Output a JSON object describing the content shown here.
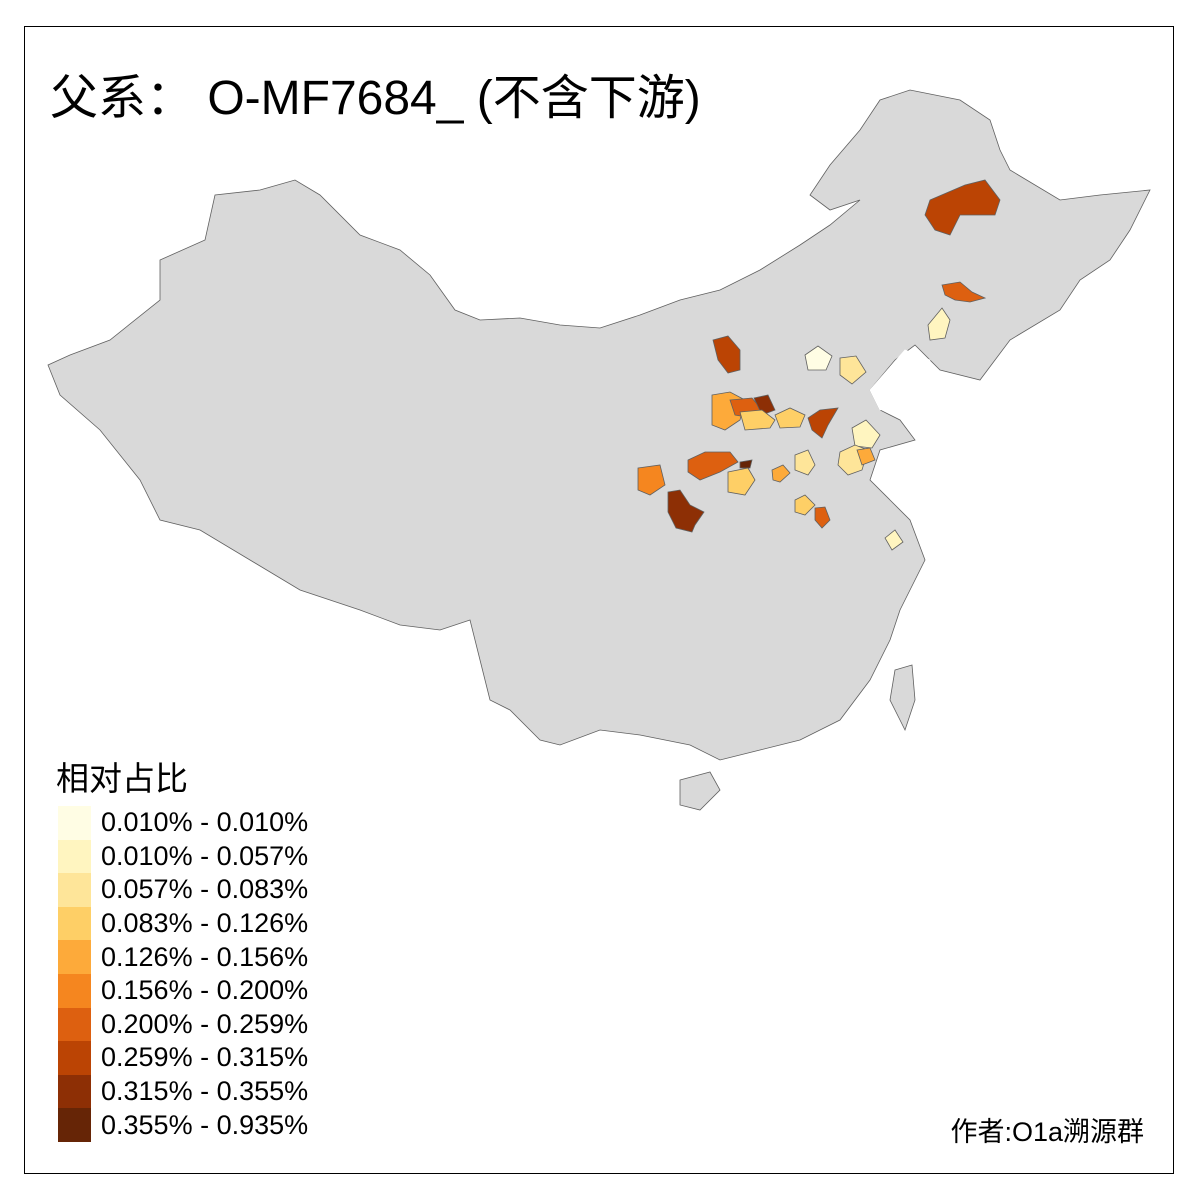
{
  "title": "父系： O-MF7684_ (不含下游)",
  "legend": {
    "title": "相对占比",
    "items": [
      {
        "label": "0.010% - 0.010%",
        "color": "#FFFDE4"
      },
      {
        "label": "0.010% - 0.057%",
        "color": "#FFF5C0"
      },
      {
        "label": "0.057% - 0.083%",
        "color": "#FEE599"
      },
      {
        "label": "0.083% - 0.126%",
        "color": "#FECF66"
      },
      {
        "label": "0.126% - 0.156%",
        "color": "#FDAA3A"
      },
      {
        "label": "0.156% - 0.200%",
        "color": "#F5861F"
      },
      {
        "label": "0.200% - 0.259%",
        "color": "#DD6010"
      },
      {
        "label": "0.259% - 0.315%",
        "color": "#BB4404"
      },
      {
        "label": "0.315% - 0.355%",
        "color": "#8D2F05"
      },
      {
        "label": "0.355% - 0.935%",
        "color": "#662506"
      }
    ]
  },
  "map": {
    "base_fill": "#D9D9D9",
    "border_color": "#606060"
  },
  "author": "作者:O1a溯源群"
}
